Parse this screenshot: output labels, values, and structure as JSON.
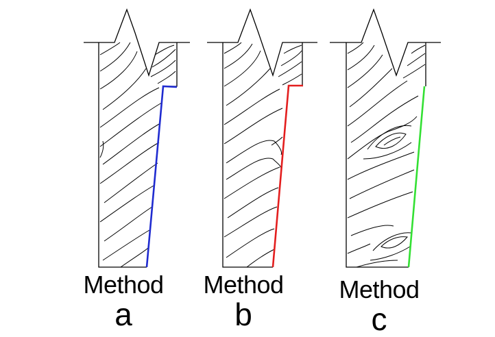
{
  "panels": [
    {
      "id": "a",
      "method_word": "Method",
      "method_letter": "a",
      "cut_color": "#1f2bd0"
    },
    {
      "id": "b",
      "method_word": "Method",
      "method_letter": "b",
      "cut_color": "#e31e1e"
    },
    {
      "id": "c",
      "method_word": "Method",
      "method_letter": "c",
      "cut_color": "#33e033"
    }
  ],
  "colors": {
    "outline": "#000000",
    "grain": "#000000",
    "background": "#ffffff"
  }
}
